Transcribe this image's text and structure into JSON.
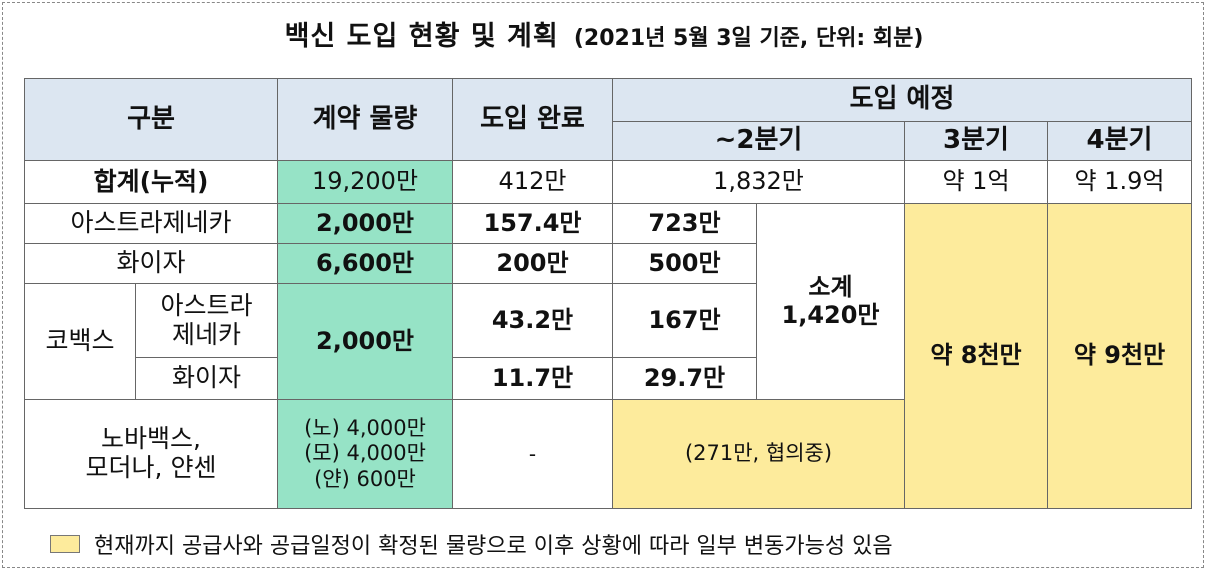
{
  "title": {
    "main": "백신 도입 현황 및 계획",
    "sub": "(2021년 5월 3일 기준, 단위: 회분)"
  },
  "headers": {
    "category": "구분",
    "contract": "계약 물량",
    "completed": "도입 완료",
    "planned": "도입 예정",
    "q2": "~2분기",
    "q3": "3분기",
    "q4": "4분기"
  },
  "total_row": {
    "label": "합계(누적)",
    "contract": "19,200만",
    "completed": "412만",
    "q2": "1,832만",
    "q3": "약 1억",
    "q4": "약 1.9억"
  },
  "astrazeneca_row": {
    "label": "아스트라제네카",
    "contract": "2,000만",
    "completed": "157.4만",
    "q2": "723만"
  },
  "pfizer_row": {
    "label": "화이자",
    "contract": "6,600만",
    "completed": "200만",
    "q2": "500만"
  },
  "covax": {
    "label": "코백스",
    "contract": "2,000만",
    "az_label_line1": "아스트라",
    "az_label_line2": "제네카",
    "az_completed": "43.2만",
    "az_q2": "167만",
    "pfizer_label": "화이자",
    "pfizer_completed": "11.7만",
    "pfizer_q2": "29.7만"
  },
  "subtotal": {
    "label": "소계",
    "value": "1,420만"
  },
  "q3_merged": "약 8천만",
  "q4_merged": "약 9천만",
  "others_row": {
    "label_line1": "노바백스,",
    "label_line2": "모더나, 얀센",
    "contract_line1": "(노) 4,000만",
    "contract_line2": "(모) 4,000만",
    "contract_line3": "(얀) 600만",
    "completed": "-",
    "q2": "(271만, 협의중)"
  },
  "legend": {
    "text": "현재까지 공급사와 공급일정이 확정된 물량으로 이후 상황에 따라 일부 변동가능성 있음"
  },
  "colors": {
    "header_bg": "#dce6f1",
    "contract_bg": "#96e3c6",
    "confirmed_bg": "#fdeb9c"
  }
}
